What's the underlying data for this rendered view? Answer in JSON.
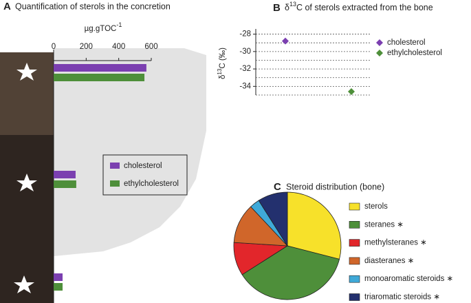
{
  "chart_data": [
    {
      "type": "hbar",
      "panel": "A",
      "title": "Quantification of sterols in the concretion",
      "x_label": [
        "µg.gTOC",
        "-1"
      ],
      "categories": [
        null,
        null,
        null
      ],
      "series": [
        {
          "name": "cholesterol",
          "color": "#7b3fb0",
          "values": [
            570,
            135,
            55
          ]
        },
        {
          "name": "ethylcholesterol",
          "color": "#4e8f3a",
          "values": [
            558,
            139,
            55
          ]
        }
      ],
      "xlim": [
        0,
        600
      ],
      "xticks": [
        0,
        200,
        400,
        600
      ]
    },
    {
      "type": "scatter",
      "panel": "B",
      "title": [
        "δ",
        "13",
        "C of sterols extracted from the bone"
      ],
      "y_label": [
        "δ",
        "13",
        "C (‰)"
      ],
      "categories": [
        null,
        null
      ],
      "series": [
        {
          "name": "cholesterol",
          "color": "#7b3fb0",
          "values": [
            -28.8,
            null
          ]
        },
        {
          "name": "ethylcholesterol",
          "color": "#4e8f3a",
          "values": [
            null,
            -34.6
          ]
        }
      ],
      "ylim": [
        -35,
        -27.4
      ],
      "yticks": [
        -28,
        -30,
        -32,
        -34
      ],
      "grid_lines": [
        -28,
        -29,
        -30,
        -31,
        -32,
        -33,
        -34,
        -35
      ],
      "grid": true
    },
    {
      "type": "pie",
      "panel": "C",
      "title": "Steroid distribution (bone)",
      "categories": [
        "sterols",
        "steranes ∗",
        "methylsteranes ∗",
        "diasteranes ∗",
        "monoaromatic steroids ∗",
        "triaromatic steroids ∗"
      ],
      "values": [
        29,
        37,
        10,
        12,
        3,
        9
      ],
      "colors": [
        "#f7e12a",
        "#4e8f3a",
        "#e2262b",
        "#d0662a",
        "#3fa9d8",
        "#23306e"
      ]
    }
  ]
}
